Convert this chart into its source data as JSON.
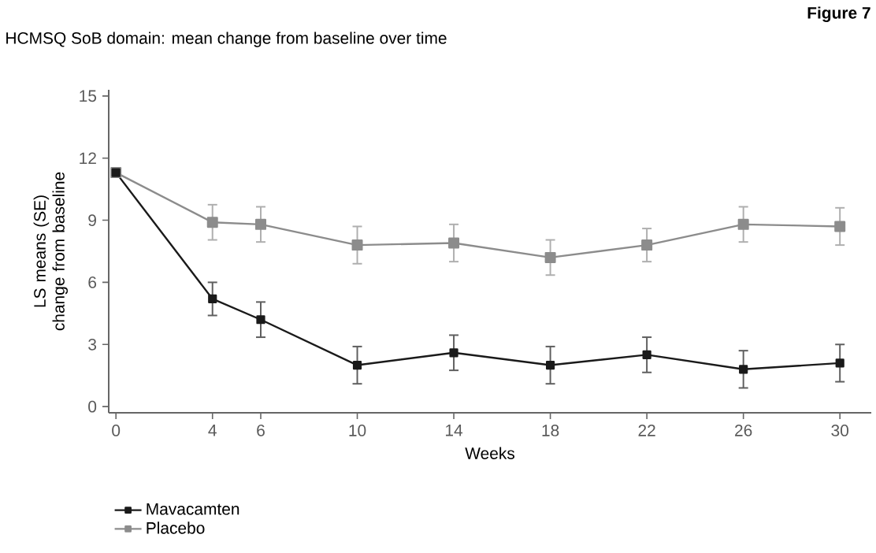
{
  "chart_data": {
    "type": "line",
    "title": "HCMSQ SoB domain: mean change from baseline over time",
    "annotations": [
      "Figure 7"
    ],
    "xlabel": "Weeks",
    "ylabel": "LS means (SE) change from baseline",
    "x": [
      0,
      4,
      6,
      10,
      14,
      18,
      22,
      26,
      30
    ],
    "series": [
      {
        "name": "Mavacamten",
        "color": "#1a1a1a",
        "values": [
          11.3,
          5.2,
          4.2,
          2.0,
          2.6,
          2.0,
          2.5,
          1.8,
          2.1
        ],
        "errors": [
          null,
          0.8,
          0.85,
          0.9,
          0.85,
          0.9,
          0.85,
          0.9,
          0.9
        ]
      },
      {
        "name": "Placebo",
        "color": "#8c8c8c",
        "values": [
          11.3,
          8.9,
          8.8,
          7.8,
          7.9,
          7.2,
          7.8,
          8.8,
          8.7
        ],
        "errors": [
          null,
          0.85,
          0.85,
          0.9,
          0.9,
          0.85,
          0.8,
          0.85,
          0.9
        ]
      }
    ],
    "xlim": [
      -0.3,
      31.3
    ],
    "ylim": [
      -0.3,
      15.3
    ],
    "xticks": [
      0,
      4,
      6,
      10,
      14,
      18,
      22,
      26,
      30
    ],
    "yticks": [
      0,
      3,
      6,
      9,
      12,
      15
    ],
    "legend": "bottom left",
    "marker": "square",
    "line_style": "solid"
  }
}
